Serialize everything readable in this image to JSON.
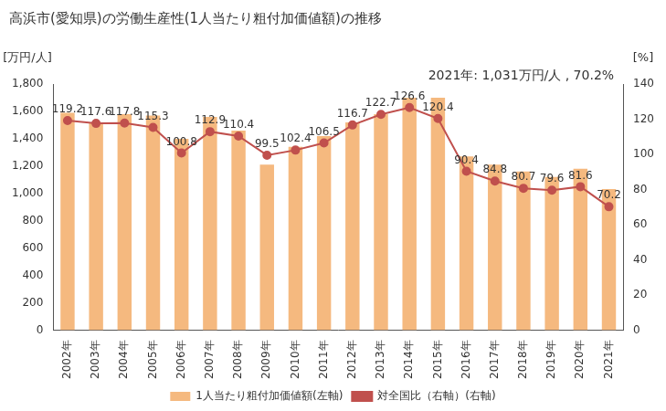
{
  "chart_data": {
    "type": "bar",
    "title": "高浜市(愛知県)の労働生産性(1人当たり粗付加価値額)の推移",
    "annotation": "2021年: 1,031万円/人 , 70.2%",
    "y_label": "[万円/人]",
    "y2_label": "[%]",
    "categories": [
      "2002年",
      "2003年",
      "2004年",
      "2005年",
      "2006年",
      "2007年",
      "2008年",
      "2009年",
      "2010年",
      "2011年",
      "2012年",
      "2013年",
      "2014年",
      "2015年",
      "2016年",
      "2017年",
      "2018年",
      "2019年",
      "2020年",
      "2021年"
    ],
    "series": [
      {
        "name": "1人当たり粗付加価値額(左軸)",
        "type": "bar",
        "color": "#f5b97f",
        "values": [
          1590,
          1520,
          1580,
          1570,
          1400,
          1560,
          1460,
          1210,
          1340,
          1420,
          1520,
          1580,
          1700,
          1700,
          1270,
          1210,
          1160,
          1120,
          1180,
          1031
        ]
      },
      {
        "name": "対全国比（右軸）(右軸)",
        "type": "line",
        "axis": "y2",
        "color": "#c0504d",
        "marker": "circle",
        "data_labels": true,
        "values": [
          119.2,
          117.6,
          117.8,
          115.3,
          100.8,
          112.9,
          110.4,
          99.5,
          102.4,
          106.5,
          116.7,
          122.7,
          126.6,
          120.4,
          90.4,
          84.8,
          80.7,
          79.6,
          81.6,
          70.2
        ]
      }
    ],
    "ylim": [
      0,
      1800
    ],
    "yticks": [
      0,
      200,
      400,
      600,
      800,
      {
        "value": 1000,
        "label": "1,000"
      },
      {
        "value": 1200,
        "label": "1,200"
      },
      {
        "value": 1400,
        "label": "1,400"
      },
      {
        "value": 1600,
        "label": "1,600"
      },
      {
        "value": 1800,
        "label": "1,800"
      }
    ],
    "y2lim": [
      0,
      140
    ],
    "y2ticks": [
      0,
      20,
      40,
      60,
      80,
      100,
      120,
      140
    ],
    "grid": false,
    "legend": "bottom"
  }
}
